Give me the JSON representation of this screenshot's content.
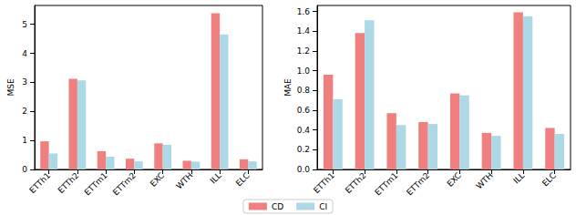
{
  "chart_data": [
    {
      "type": "bar",
      "y_label": "MSE",
      "categories": [
        "ETTh1",
        "ETTh2",
        "ETTm1",
        "ETTm2",
        "EXC",
        "WTH",
        "ILL",
        "ELC"
      ],
      "series": [
        {
          "name": "CD",
          "color": "#f08080",
          "values": [
            0.97,
            3.12,
            0.63,
            0.37,
            0.9,
            0.3,
            5.38,
            0.35
          ]
        },
        {
          "name": "CI",
          "color": "#add8e6",
          "values": [
            0.55,
            3.07,
            0.44,
            0.28,
            0.85,
            0.27,
            4.65,
            0.28
          ]
        }
      ],
      "ylim": [
        0,
        5.65
      ],
      "yticks": [
        0,
        1,
        2,
        3,
        4,
        5
      ],
      "legend": "lower center"
    },
    {
      "type": "bar",
      "y_label": "MAE",
      "categories": [
        "ETTh1",
        "ETTh2",
        "ETTm1",
        "ETTm2",
        "EXC",
        "WTH",
        "ILL",
        "ELC"
      ],
      "series": [
        {
          "name": "CD",
          "color": "#f08080",
          "values": [
            0.96,
            1.38,
            0.57,
            0.48,
            0.77,
            0.37,
            1.59,
            0.42
          ]
        },
        {
          "name": "CI",
          "color": "#add8e6",
          "values": [
            0.71,
            1.51,
            0.45,
            0.46,
            0.75,
            0.34,
            1.55,
            0.36
          ]
        }
      ],
      "ylim": [
        0,
        1.66
      ],
      "yticks": [
        {
          "value": 0,
          "label": "0.0"
        },
        {
          "value": 0.2,
          "label": "0.2"
        },
        {
          "value": 0.4,
          "label": "0.4"
        },
        {
          "value": 0.6,
          "label": "0.6"
        },
        {
          "value": 0.8,
          "label": "0.8"
        },
        {
          "value": 1.0,
          "label": "1.0"
        },
        {
          "value": 1.2,
          "label": "1.2"
        },
        {
          "value": 1.4,
          "label": "1.4"
        },
        {
          "value": 1.6,
          "label": "1.6"
        }
      ],
      "legend": "lower center"
    }
  ]
}
